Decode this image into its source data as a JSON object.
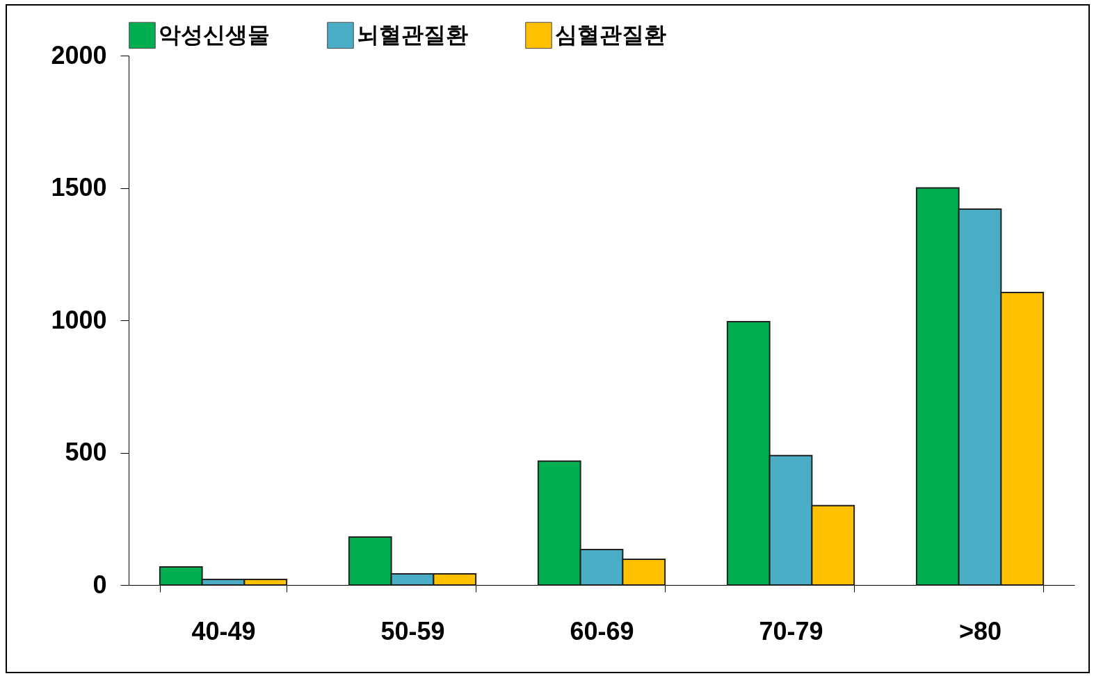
{
  "chart_data": {
    "type": "bar",
    "categories": [
      "40-49",
      "50-59",
      "60-69",
      "70-79",
      ">80"
    ],
    "series": [
      {
        "name": "악성신생물",
        "color": "#00b050",
        "values": [
          68,
          181,
          468,
          995,
          1500
        ]
      },
      {
        "name": "뇌혈관질환",
        "color": "#4bacc6",
        "values": [
          21,
          42,
          134,
          489,
          1420
        ]
      },
      {
        "name": "심혈관질환",
        "color": "#ffc000",
        "values": [
          21,
          42,
          97,
          300,
          1105
        ]
      }
    ],
    "ylim": [
      0,
      2000
    ],
    "yticks": [
      0,
      500,
      1000,
      1500,
      2000
    ],
    "grid": false,
    "legend": "top"
  }
}
